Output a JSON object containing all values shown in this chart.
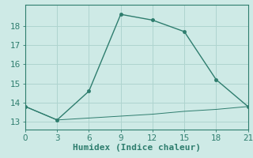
{
  "xlabel": "Humidex (Indice chaleur)",
  "line1_x": [
    0,
    3,
    6,
    9,
    12,
    15,
    18,
    21
  ],
  "line1_y": [
    13.8,
    13.1,
    14.6,
    18.6,
    18.3,
    17.7,
    15.2,
    13.8
  ],
  "line2_x": [
    0,
    3,
    6,
    9,
    12,
    15,
    18,
    21
  ],
  "line2_y": [
    13.8,
    13.1,
    13.2,
    13.3,
    13.4,
    13.55,
    13.65,
    13.8
  ],
  "line_color": "#2e7d6e",
  "bg_color": "#ceeae6",
  "grid_color": "#afd4cf",
  "xlim": [
    0,
    21
  ],
  "ylim": [
    12.6,
    19.1
  ],
  "xticks": [
    0,
    3,
    6,
    9,
    12,
    15,
    18,
    21
  ],
  "yticks": [
    13,
    14,
    15,
    16,
    17,
    18
  ],
  "xlabel_fontsize": 8,
  "tick_fontsize": 7.5
}
